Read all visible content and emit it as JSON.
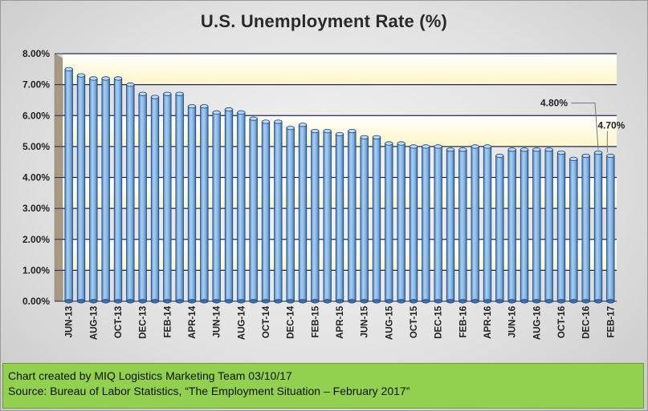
{
  "chart_data": {
    "type": "bar",
    "title": "U.S. Unemployment Rate (%)",
    "xlabel": "",
    "ylabel": "",
    "ylim": [
      0,
      8
    ],
    "yticks": [
      "0.00%",
      "1.00%",
      "2.00%",
      "3.00%",
      "4.00%",
      "5.00%",
      "6.00%",
      "7.00%",
      "8.00%"
    ],
    "grid": true,
    "categories": [
      "JUN-13",
      "JUL-13",
      "AUG-13",
      "SEP-13",
      "OCT-13",
      "NOV-13",
      "DEC-13",
      "JAN-14",
      "FEB-14",
      "MAR-14",
      "APR-14",
      "MAY-14",
      "JUN-14",
      "JUL-14",
      "AUG-14",
      "SEP-14",
      "OCT-14",
      "NOV-14",
      "DEC-14",
      "JAN-15",
      "FEB-15",
      "MAR-15",
      "APR-15",
      "MAY-15",
      "JUN-15",
      "JUL-15",
      "AUG-15",
      "SEP-15",
      "OCT-15",
      "NOV-15",
      "DEC-15",
      "JAN-16",
      "FEB-16",
      "MAR-16",
      "APR-16",
      "MAY-16",
      "JUN-16",
      "JUL-16",
      "AUG-16",
      "SEP-16",
      "OCT-16",
      "NOV-16",
      "DEC-16",
      "JAN-17",
      "FEB-17"
    ],
    "visible_tick_labels": [
      "JUN-13",
      "AUG-13",
      "OCT-13",
      "DEC-13",
      "FEB-14",
      "APR-14",
      "JUN-14",
      "AUG-14",
      "OCT-14",
      "DEC-14",
      "FEB-15",
      "APR-15",
      "JUN-15",
      "AUG-15",
      "OCT-15",
      "DEC-15",
      "FEB-16",
      "APR-16",
      "JUN-16",
      "AUG-16",
      "OCT-16",
      "DEC-16",
      "FEB-17"
    ],
    "values": [
      7.5,
      7.3,
      7.2,
      7.2,
      7.2,
      7.0,
      6.7,
      6.6,
      6.7,
      6.7,
      6.3,
      6.3,
      6.1,
      6.2,
      6.1,
      5.9,
      5.8,
      5.8,
      5.6,
      5.7,
      5.5,
      5.5,
      5.4,
      5.5,
      5.3,
      5.3,
      5.1,
      5.1,
      5.0,
      5.0,
      5.0,
      4.9,
      4.9,
      5.0,
      5.0,
      4.7,
      4.9,
      4.9,
      4.9,
      4.9,
      4.8,
      4.6,
      4.7,
      4.8,
      4.7
    ],
    "data_labels": [
      {
        "category": "JAN-17",
        "text": "4.80%"
      },
      {
        "category": "FEB-17",
        "text": "4.70%"
      }
    ],
    "colors": {
      "bar": "#7fb2e0",
      "band": "#fff6c8",
      "grid": "#1f2a5a",
      "axis_wall": "#a89a80"
    }
  },
  "footer": {
    "line1": "Chart created by MIQ Logistics Marketing Team 03/10/17",
    "line2": "Source: Bureau of Labor Statistics, “The Employment Situation – February 2017”"
  }
}
